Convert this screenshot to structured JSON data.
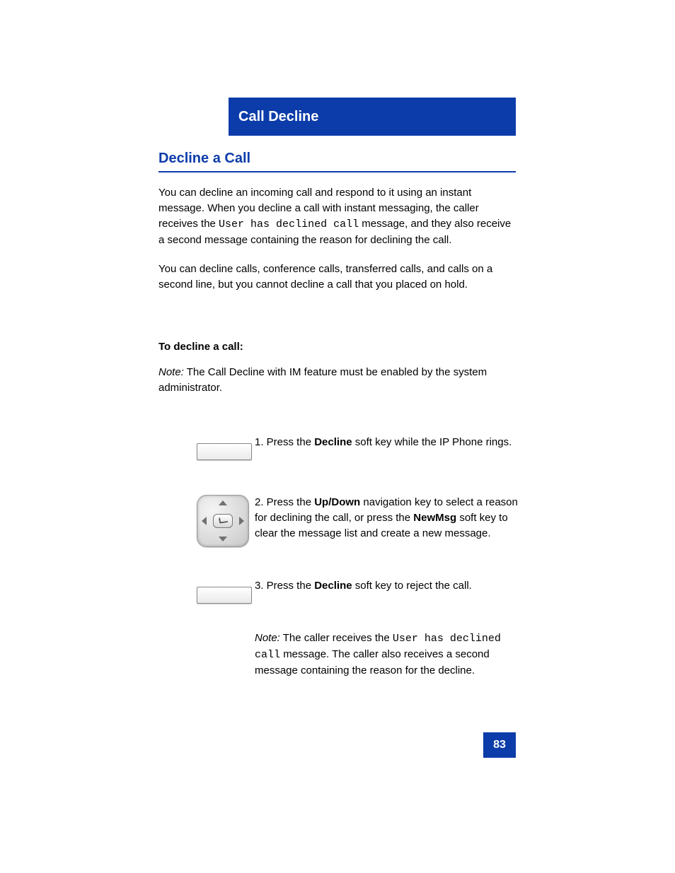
{
  "colors": {
    "brand_blue": "#0c3caa",
    "text": "#000000",
    "background": "#ffffff"
  },
  "title_bar": "Call Decline",
  "section_title": "Decline a Call",
  "intro_paragraph": {
    "prefix": "You can decline an incoming call and respond to it using an instant message. When you decline a call with instant messaging, the caller receives the ",
    "mono_inline": "User has declined call",
    "suffix": " message, and they also receive a second message containing the reason for declining the call."
  },
  "intro_paragraph2": "You can decline calls, conference calls, transferred calls, and calls on a second line, but you cannot decline a call that you placed on hold.",
  "steps_heading": "To decline a call:",
  "note1": {
    "label": "Note:",
    "text": " The Call Decline with IM feature must be enabled by the system administrator."
  },
  "step1": {
    "prefix": "1. Press the ",
    "bold": "Decline",
    "suffix": " soft key while the IP Phone rings."
  },
  "step2": {
    "prefix": "2. Press the ",
    "bold1": "Up/Down",
    "mid": " navigation key to select a reason for declining the call, or press the ",
    "bold2": "NewMsg",
    "suffix": " soft key to clear the message list and create a new message."
  },
  "step3": {
    "prefix": "3. Press the ",
    "bold": "Decline",
    "suffix": " soft key to reject the call."
  },
  "note2": {
    "label": "Note:",
    "prefix": " The caller receives the ",
    "mono_inline": "User has declined call",
    "suffix": " message. The caller also receives a second message containing the reason for the decline."
  },
  "page_number": "83"
}
